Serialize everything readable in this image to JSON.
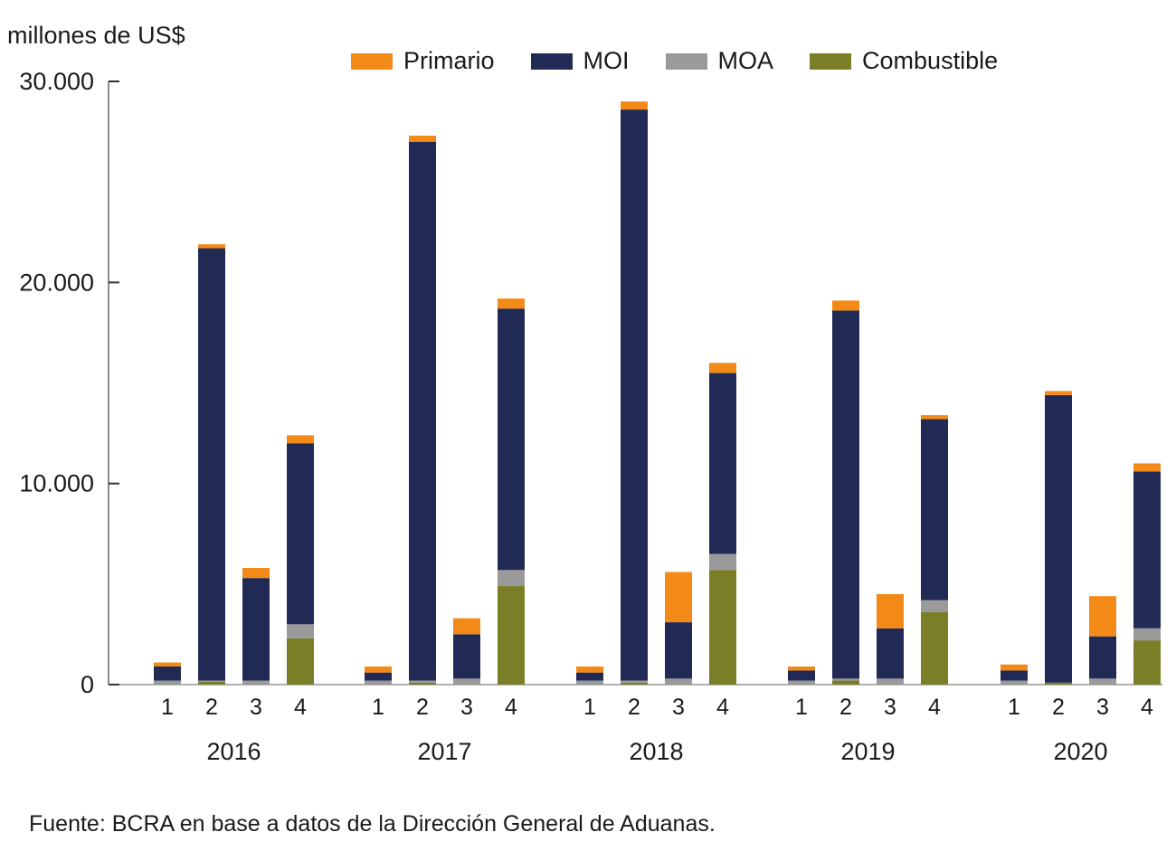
{
  "chart_data": {
    "type": "bar",
    "stacked": true,
    "title": "",
    "ylabel": "millones de US$",
    "xlabel": "",
    "ylim": [
      0,
      30000
    ],
    "yticks": [
      0,
      10000,
      20000,
      30000
    ],
    "ytick_labels": [
      "0",
      "10.000",
      "20.000",
      "30.000"
    ],
    "grid": false,
    "legend_position": "top",
    "groups": [
      "2016",
      "2017",
      "2018",
      "2019",
      "2020"
    ],
    "quarters": [
      "1",
      "2",
      "3",
      "4"
    ],
    "categories": [
      "2016-1",
      "2016-2",
      "2016-3",
      "2016-4",
      "2017-1",
      "2017-2",
      "2017-3",
      "2017-4",
      "2018-1",
      "2018-2",
      "2018-3",
      "2018-4",
      "2019-1",
      "2019-2",
      "2019-3",
      "2019-4",
      "2020-1",
      "2020-2",
      "2020-3",
      "2020-4"
    ],
    "series": [
      {
        "name": "Combustible",
        "color": "#7a7f27",
        "values": [
          0,
          150,
          0,
          2300,
          0,
          100,
          0,
          4900,
          0,
          100,
          0,
          5700,
          0,
          200,
          0,
          3600,
          0,
          100,
          0,
          2200
        ]
      },
      {
        "name": "MOA",
        "color": "#9a9a9a",
        "values": [
          200,
          50,
          200,
          700,
          200,
          100,
          300,
          800,
          200,
          100,
          300,
          800,
          200,
          100,
          300,
          600,
          200,
          0,
          300,
          600
        ]
      },
      {
        "name": "MOI",
        "color": "#212a55",
        "values": [
          700,
          21500,
          5100,
          9000,
          400,
          26800,
          2200,
          13000,
          400,
          28400,
          2800,
          9000,
          500,
          18300,
          2500,
          9000,
          500,
          14300,
          2100,
          7800
        ]
      },
      {
        "name": "Primario",
        "color": "#f38a18",
        "values": [
          200,
          200,
          500,
          400,
          300,
          300,
          800,
          500,
          300,
          400,
          2500,
          500,
          200,
          500,
          1700,
          200,
          300,
          200,
          2000,
          400
        ]
      }
    ],
    "legend_order": [
      "Primario",
      "MOI",
      "MOA",
      "Combustible"
    ]
  },
  "unit_label": "millones de US$",
  "source": "Fuente: BCRA en base a datos de la Dirección General de Aduanas."
}
